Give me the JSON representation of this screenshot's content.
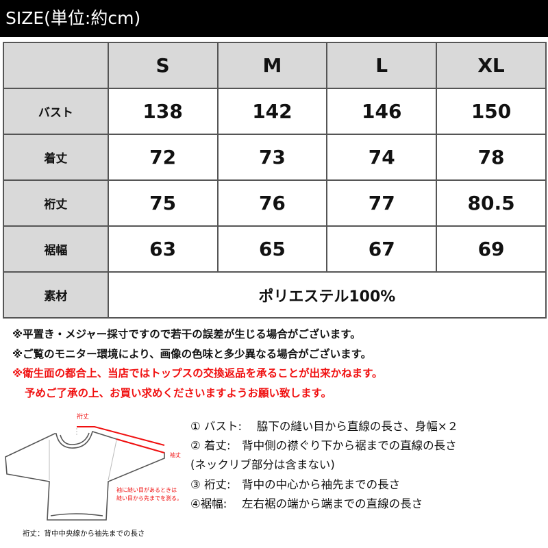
{
  "title": "SIZE(単位:約cm)",
  "table": {
    "headers": [
      "S",
      "M",
      "L",
      "XL"
    ],
    "rows": [
      {
        "label": "バスト",
        "values": [
          "138",
          "142",
          "146",
          "150"
        ]
      },
      {
        "label": "着丈",
        "values": [
          "72",
          "73",
          "74",
          "78"
        ]
      },
      {
        "label": "裄丈",
        "values": [
          "75",
          "76",
          "77",
          "80.5"
        ]
      },
      {
        "label": "裾幅",
        "values": [
          "63",
          "65",
          "67",
          "69"
        ]
      }
    ],
    "material": {
      "label": "素材",
      "value": "ポリエステル100%"
    }
  },
  "notes": [
    "※平置き・メジャー採寸ですので若干の誤差が生じる場合がございます。",
    "※ご覧のモニター環境により、画像の色味と多少異なる場合がございます。",
    "※衛生面の都合上、当店ではトップスの交換返品を承ることが出来かねます。",
    "予めご了承の上、お買い求めくださいますようお願い致します。"
  ],
  "diagram": {
    "label_yuki": "裄丈",
    "label_sode": "袖丈",
    "note_line1": "袖に縫い目があるときは",
    "note_line2": "縫い目から先までを測る。",
    "caption": "裄丈：背中中央線から袖先までの長さ"
  },
  "legend": [
    "① バスト:　 脇下の縫い目から直線の長さ、身幅×２",
    "② 着丈:　背中側の襟ぐり下から裾までの直線の長さ",
    "(ネックリブ部分は含まない)",
    "③ 裄丈:　背中の中心から袖先までの長さ",
    "④裾幅:　 左右裾の端から端までの直線の長さ"
  ],
  "colors": {
    "header_bg": "#000000",
    "cell_grey": "#d9d9d9",
    "warning_red": "#f01010"
  }
}
